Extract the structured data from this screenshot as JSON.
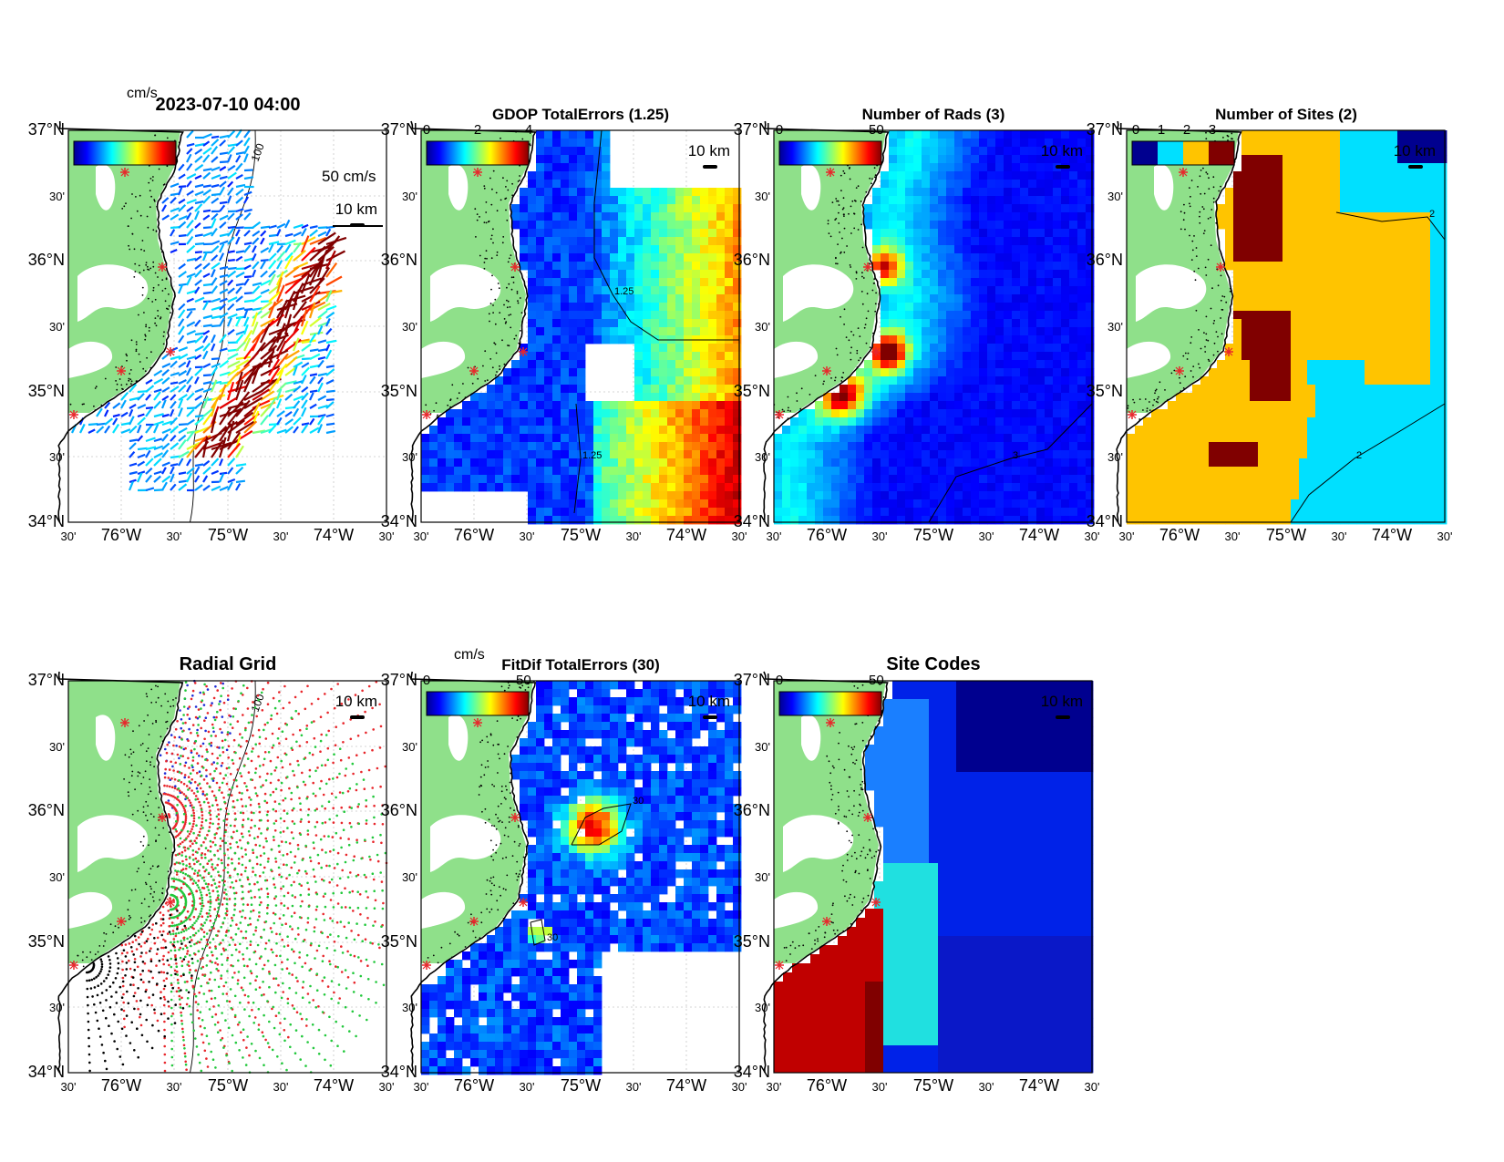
{
  "figure": {
    "timestamp": "2023-07-10 04:00",
    "scale_label": "10 km",
    "lat_ticks": [
      "37°N",
      "30'",
      "36°N",
      "30'",
      "35°N",
      "30'",
      "34°N"
    ],
    "lon_ticks": [
      "30'",
      "76°W",
      "30'",
      "75°W",
      "30'",
      "74°W",
      "30'"
    ]
  },
  "colors": {
    "land": "#8fe08a",
    "coast": "#000000",
    "grid": "#c8c8c8",
    "site_marker": "#e8262b",
    "radial_sites": [
      "#1f2bd6",
      "#e8262b",
      "#22c83c",
      "#000000"
    ]
  },
  "panels": [
    {
      "id": "vectors",
      "title": "2023-07-10 04:00",
      "kind": "vectors",
      "colorbar_label": "cm/s",
      "colorbar_ticks": [],
      "reference_vector": "50 cm/s",
      "contour_label": "100"
    },
    {
      "id": "gdop",
      "title": "GDOP TotalErrors (1.25)",
      "kind": "field",
      "colorbar_label": "",
      "colorbar_ticks": [
        "0",
        "2",
        "4"
      ],
      "contour_label": "1.25"
    },
    {
      "id": "nrads",
      "title": "Number of Rads (3)",
      "kind": "field",
      "colorbar_label": "",
      "colorbar_ticks": [
        "0",
        "50"
      ],
      "contour_label": "3"
    },
    {
      "id": "nsites",
      "title": "Number of Sites (2)",
      "kind": "sites",
      "colorbar_label": "",
      "colorbar_ticks": [
        "0",
        "1",
        "2",
        "3"
      ],
      "contour_label": "2"
    },
    {
      "id": "radial",
      "title": "Radial Grid",
      "kind": "radial",
      "colorbar_label": "",
      "colorbar_ticks": [],
      "contour_label": "100"
    },
    {
      "id": "fitdif",
      "title": "FitDif TotalErrors (30)",
      "kind": "field",
      "colorbar_label": "cm/s",
      "colorbar_ticks": [
        "0",
        "50"
      ],
      "contour_label": "30"
    },
    {
      "id": "sitecodes",
      "title": "Site Codes",
      "kind": "codes",
      "colorbar_label": "",
      "colorbar_ticks": [
        "0",
        "50"
      ],
      "contour_label": ""
    }
  ]
}
